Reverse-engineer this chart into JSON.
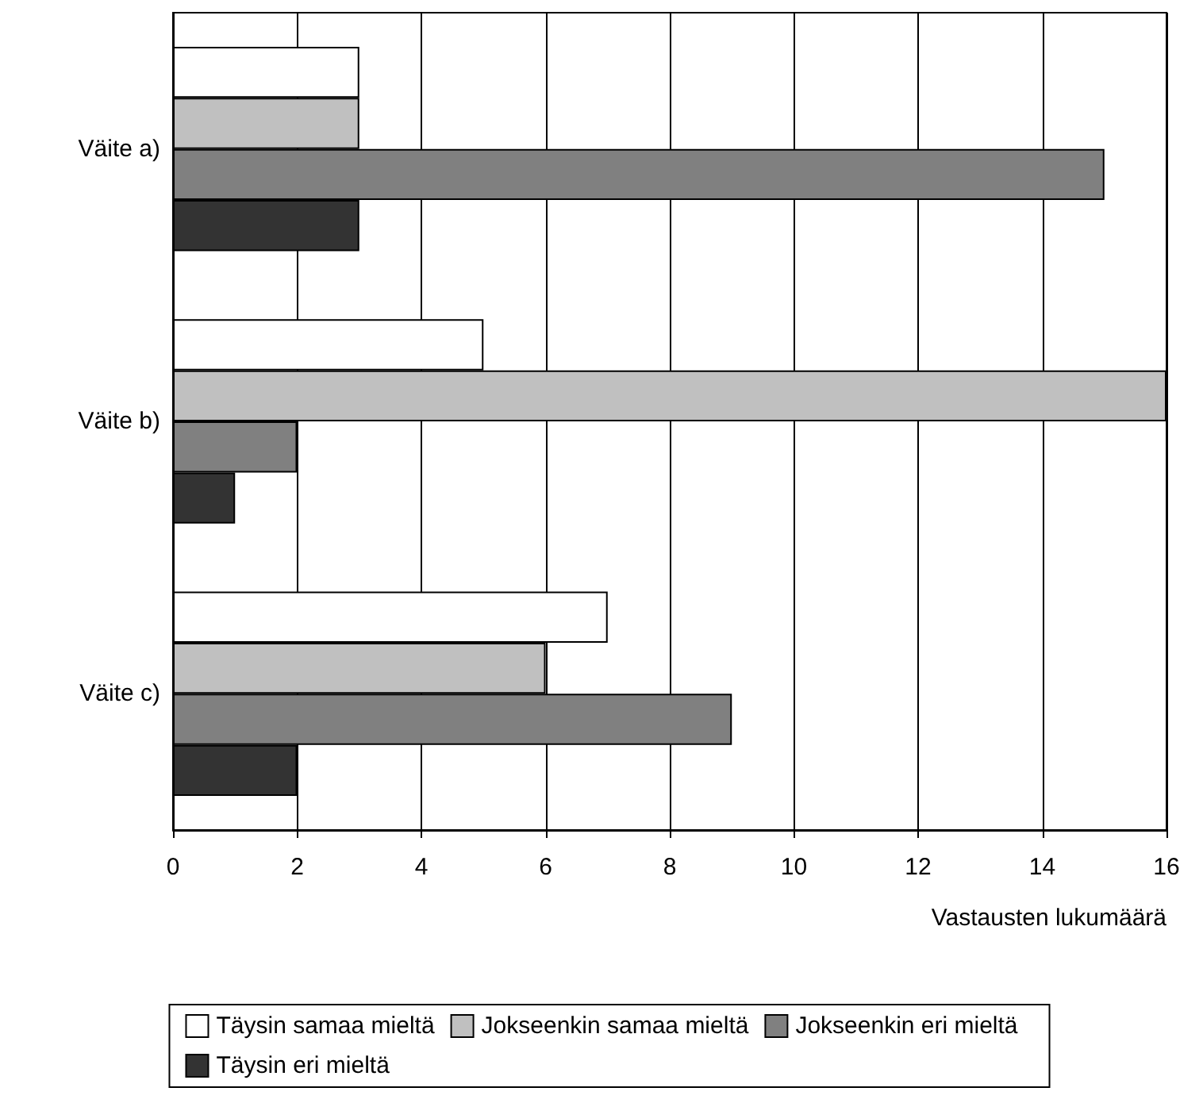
{
  "chart_data": {
    "type": "bar",
    "orientation": "horizontal",
    "xlabel": "Vastausten lukumäärä",
    "categories": [
      "Väite a)",
      "Väite b)",
      "Väite c)"
    ],
    "series": [
      {
        "name": "Täysin samaa mieltä",
        "color": "#ffffff",
        "values": [
          3,
          5,
          7
        ]
      },
      {
        "name": "Jokseenkin samaa mieltä",
        "color": "#c0c0c0",
        "values": [
          3,
          16,
          6
        ]
      },
      {
        "name": "Jokseenkin eri mieltä",
        "color": "#808080",
        "values": [
          15,
          2,
          9
        ]
      },
      {
        "name": "Täysin eri mieltä",
        "color": "#333333",
        "values": [
          3,
          1,
          2
        ]
      }
    ],
    "xlim": [
      0,
      16
    ],
    "xticks": [
      0,
      2,
      4,
      6,
      8,
      10,
      12,
      14,
      16
    ],
    "grid": "x",
    "legend": "bottom"
  }
}
